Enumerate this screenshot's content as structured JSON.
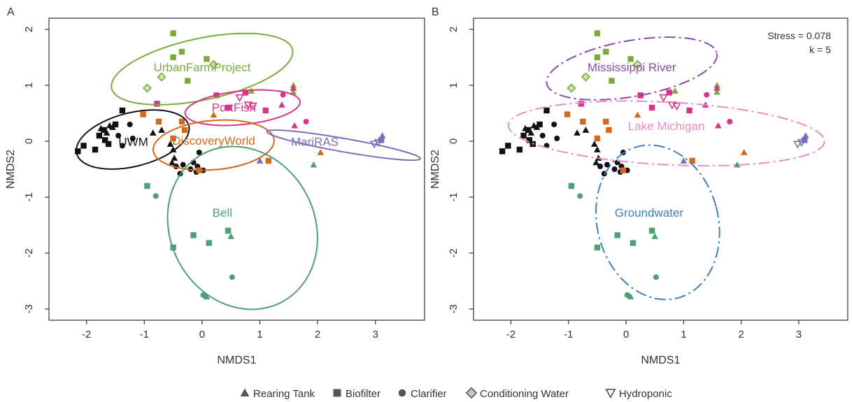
{
  "chart_data": [
    {
      "panel_label": "A",
      "type": "scatter",
      "xlabel": "NMDS1",
      "ylabel": "NMDS2",
      "xlim": [
        -2.65,
        3.85
      ],
      "ylim": [
        -3.2,
        2.2
      ],
      "xticks": [
        -2,
        -1,
        0,
        1,
        2,
        3
      ],
      "yticks": [
        -3,
        -2,
        -1,
        0,
        1,
        2
      ],
      "xtick_labels": [
        "-2",
        "-1",
        "0",
        "1",
        "2",
        "3"
      ],
      "ytick_labels": [
        "-3",
        "-2",
        "-1",
        "0",
        "1",
        "2"
      ],
      "groups": [
        {
          "name": "UrbanFarmProject",
          "color": "#7aab3a",
          "label_at": [
            0.0,
            1.25
          ],
          "ellipse": {
            "cx": 0.0,
            "cy": 1.29,
            "rx": 1.6,
            "ry": 0.55,
            "angle": -12,
            "dash": false
          }
        },
        {
          "name": "PortFish",
          "color": "#d6338a",
          "label_at": [
            0.55,
            0.53
          ],
          "ellipse": {
            "cx": 0.7,
            "cy": 0.6,
            "rx": 1.0,
            "ry": 0.3,
            "angle": -6,
            "dash": false
          }
        },
        {
          "name": "UWM",
          "color": "#111111",
          "label_at": [
            -1.19,
            -0.08
          ],
          "ellipse": {
            "cx": -1.2,
            "cy": 0.03,
            "rx": 1.0,
            "ry": 0.48,
            "angle": -14,
            "dash": false
          }
        },
        {
          "name": "DiscoveryWorld",
          "color": "#d2691e",
          "label_at": [
            0.2,
            -0.06
          ],
          "ellipse": {
            "cx": 0.2,
            "cy": -0.07,
            "rx": 1.05,
            "ry": 0.44,
            "angle": -5,
            "dash": false
          }
        },
        {
          "name": "MariRAS",
          "color": "#7b6cbf",
          "label_at": [
            1.95,
            -0.08
          ],
          "ellipse": {
            "cx": 2.45,
            "cy": -0.07,
            "rx": 1.35,
            "ry": 0.12,
            "angle": 10,
            "dash": false
          }
        },
        {
          "name": "Bell",
          "color": "#4e9f74",
          "label_at": [
            0.35,
            -1.35
          ],
          "ellipse": {
            "cx": 0.7,
            "cy": -1.55,
            "rx": 1.25,
            "ry": 1.5,
            "angle": -28,
            "dash": false
          }
        }
      ]
    },
    {
      "panel_label": "B",
      "type": "scatter",
      "xlabel": "NMDS1",
      "ylabel": "NMDS2",
      "xlim": [
        -2.65,
        3.85
      ],
      "ylim": [
        -3.2,
        2.2
      ],
      "xticks": [
        -2,
        -1,
        0,
        1,
        2,
        3
      ],
      "yticks": [
        -3,
        -2,
        -1,
        0,
        1,
        2
      ],
      "xtick_labels": [
        "-2",
        "-1",
        "0",
        "1",
        "2",
        "3"
      ],
      "ytick_labels": [
        "-3",
        "-2",
        "-1",
        "0",
        "1",
        "2"
      ],
      "annotation_lines": [
        "Stress = 0.078",
        "k = 5"
      ],
      "groups": [
        {
          "name": "Mississippi River",
          "color": "#8a49a8",
          "label_at": [
            0.1,
            1.25
          ],
          "ellipse": {
            "cx": 0.1,
            "cy": 1.3,
            "rx": 1.5,
            "ry": 0.5,
            "angle": -10,
            "dash": true
          }
        },
        {
          "name": "Lake Michigan",
          "color": "#e98dc3",
          "label_at": [
            0.7,
            0.2
          ],
          "ellipse": {
            "cx": 0.7,
            "cy": 0.14,
            "rx": 2.75,
            "ry": 0.56,
            "angle": 3,
            "dash": true
          }
        },
        {
          "name": "Groundwater",
          "color": "#3d7fc1",
          "label_at": [
            0.4,
            -1.35
          ],
          "ellipse": {
            "cx": 0.55,
            "cy": -1.45,
            "rx": 1.05,
            "ry": 1.4,
            "angle": -15,
            "dash": true
          }
        }
      ]
    }
  ],
  "points": [
    {
      "x": -2.15,
      "y": -0.18,
      "shape": "square",
      "group": "UWM"
    },
    {
      "x": -2.05,
      "y": -0.08,
      "shape": "square",
      "group": "UWM"
    },
    {
      "x": -1.85,
      "y": -0.15,
      "shape": "square",
      "group": "UWM"
    },
    {
      "x": -1.78,
      "y": 0.1,
      "shape": "square",
      "group": "UWM"
    },
    {
      "x": -1.7,
      "y": 0.2,
      "shape": "square",
      "group": "UWM"
    },
    {
      "x": -1.65,
      "y": 0.15,
      "shape": "triangle",
      "group": "UWM"
    },
    {
      "x": -1.6,
      "y": 0.28,
      "shape": "triangle",
      "group": "UWM"
    },
    {
      "x": -1.55,
      "y": 0.25,
      "shape": "triangle",
      "group": "UWM"
    },
    {
      "x": -1.75,
      "y": 0.23,
      "shape": "triangle",
      "group": "UWM"
    },
    {
      "x": -1.68,
      "y": 0.02,
      "shape": "square",
      "group": "UWM"
    },
    {
      "x": -1.62,
      "y": -0.05,
      "shape": "square",
      "group": "UWM"
    },
    {
      "x": -1.5,
      "y": 0.3,
      "shape": "square",
      "group": "UWM"
    },
    {
      "x": -1.38,
      "y": 0.55,
      "shape": "square",
      "group": "UWM"
    },
    {
      "x": -1.25,
      "y": 0.3,
      "shape": "circle",
      "group": "UWM"
    },
    {
      "x": -1.45,
      "y": 0.1,
      "shape": "circle",
      "group": "UWM"
    },
    {
      "x": -1.2,
      "y": 0.05,
      "shape": "circle",
      "group": "UWM"
    },
    {
      "x": -1.38,
      "y": -0.08,
      "shape": "circle",
      "group": "UWM"
    },
    {
      "x": -0.85,
      "y": 0.15,
      "shape": "triangle",
      "group": "DiscoveryWorld"
    },
    {
      "x": -0.7,
      "y": 0.2,
      "shape": "triangle",
      "group": "DiscoveryWorld"
    },
    {
      "x": -0.55,
      "y": -0.05,
      "shape": "triangle",
      "group": "DiscoveryWorld"
    },
    {
      "x": -0.5,
      "y": -0.15,
      "shape": "triangle",
      "group": "DiscoveryWorld"
    },
    {
      "x": -0.48,
      "y": -0.3,
      "shape": "triangle",
      "group": "DiscoveryWorld"
    },
    {
      "x": -0.52,
      "y": -0.38,
      "shape": "triangle",
      "group": "DiscoveryWorld"
    },
    {
      "x": -0.45,
      "y": -0.45,
      "shape": "circle",
      "group": "DiscoveryWorld"
    },
    {
      "x": -0.33,
      "y": -0.42,
      "shape": "circle",
      "group": "DiscoveryWorld"
    },
    {
      "x": -0.2,
      "y": -0.5,
      "shape": "circle",
      "group": "DiscoveryWorld"
    },
    {
      "x": -0.08,
      "y": -0.45,
      "shape": "circle",
      "group": "DiscoveryWorld"
    },
    {
      "x": 0.02,
      "y": -0.52,
      "shape": "circle",
      "group": "DiscoveryWorld"
    },
    {
      "x": -0.38,
      "y": -0.58,
      "shape": "circle",
      "group": "DiscoveryWorld"
    },
    {
      "x": -0.05,
      "y": -0.2,
      "shape": "circle",
      "group": "DiscoveryWorld"
    },
    {
      "x": -0.15,
      "y": -0.38,
      "shape": "circle",
      "group": "DiscoveryWorld"
    },
    {
      "x": -0.1,
      "y": -0.55,
      "shape": "circle",
      "group": "DiscoveryWorld"
    },
    {
      "x": -1.02,
      "y": 0.48,
      "shape": "square",
      "group": "DiscoveryWorld",
      "color": "#d2691e"
    },
    {
      "x": -0.75,
      "y": 0.35,
      "shape": "square",
      "group": "DiscoveryWorld",
      "color": "#d2691e"
    },
    {
      "x": -0.35,
      "y": 0.35,
      "shape": "square",
      "group": "DiscoveryWorld",
      "color": "#d2691e"
    },
    {
      "x": -0.3,
      "y": 0.2,
      "shape": "square",
      "group": "DiscoveryWorld",
      "color": "#d2691e"
    },
    {
      "x": -0.5,
      "y": 0.05,
      "shape": "square",
      "group": "DiscoveryWorld",
      "color": "#d2691e"
    },
    {
      "x": -0.05,
      "y": -0.52,
      "shape": "square",
      "group": "DiscoveryWorld",
      "color": "#d2691e"
    },
    {
      "x": 0.2,
      "y": 0.47,
      "shape": "triangle",
      "group": "DiscoveryWorld",
      "color": "#d2691e"
    },
    {
      "x": 1.15,
      "y": -0.35,
      "shape": "square",
      "group": "DiscoveryWorld",
      "color": "#d2691e"
    },
    {
      "x": 2.05,
      "y": -0.2,
      "shape": "triangle",
      "group": "DiscoveryWorld",
      "color": "#d2691e"
    },
    {
      "x": -0.5,
      "y": 1.93,
      "shape": "square",
      "group": "UrbanFarmProject",
      "color": "#7aab3a"
    },
    {
      "x": -0.35,
      "y": 1.6,
      "shape": "square",
      "group": "UrbanFarmProject",
      "color": "#7aab3a"
    },
    {
      "x": -0.5,
      "y": 1.5,
      "shape": "square",
      "group": "UrbanFarmProject",
      "color": "#7aab3a"
    },
    {
      "x": 0.08,
      "y": 1.47,
      "shape": "square",
      "group": "UrbanFarmProject",
      "color": "#7aab3a"
    },
    {
      "x": -0.25,
      "y": 1.08,
      "shape": "square",
      "group": "UrbanFarmProject",
      "color": "#7aab3a"
    },
    {
      "x": 0.2,
      "y": 1.37,
      "shape": "diamond",
      "group": "UrbanFarmProject",
      "color": "#7aab3a"
    },
    {
      "x": -0.7,
      "y": 1.15,
      "shape": "diamond",
      "group": "UrbanFarmProject",
      "color": "#7aab3a"
    },
    {
      "x": -0.95,
      "y": 0.95,
      "shape": "diamond",
      "group": "UrbanFarmProject",
      "color": "#7aab3a"
    },
    {
      "x": 0.85,
      "y": 0.9,
      "shape": "triangle",
      "group": "UrbanFarmProject",
      "color": "#7aab3a"
    },
    {
      "x": 1.58,
      "y": 1.0,
      "shape": "triangle",
      "group": "UrbanFarmProject",
      "color": "#7aab3a"
    },
    {
      "x": 1.58,
      "y": 0.88,
      "shape": "triangle",
      "group": "UrbanFarmProject",
      "color": "#7aab3a"
    },
    {
      "x": -0.78,
      "y": 0.67,
      "shape": "square",
      "group": "PortFish",
      "color": "#d6338a"
    },
    {
      "x": 0.25,
      "y": 0.82,
      "shape": "square",
      "group": "PortFish",
      "color": "#d6338a"
    },
    {
      "x": 0.75,
      "y": 0.87,
      "shape": "square",
      "group": "PortFish",
      "color": "#d6338a"
    },
    {
      "x": 0.45,
      "y": 0.6,
      "shape": "square",
      "group": "PortFish",
      "color": "#d6338a"
    },
    {
      "x": 1.1,
      "y": 0.55,
      "shape": "square",
      "group": "PortFish",
      "color": "#d6338a"
    },
    {
      "x": 0.65,
      "y": 0.78,
      "shape": "invtri",
      "group": "PortFish",
      "color": "#d6338a"
    },
    {
      "x": 0.8,
      "y": 0.65,
      "shape": "invtri",
      "group": "PortFish",
      "color": "#d6338a"
    },
    {
      "x": 0.88,
      "y": 0.63,
      "shape": "invtri",
      "group": "PortFish",
      "color": "#d6338a"
    },
    {
      "x": 1.4,
      "y": 0.83,
      "shape": "circle",
      "group": "PortFish",
      "color": "#d6338a"
    },
    {
      "x": 1.8,
      "y": 0.35,
      "shape": "circle",
      "group": "PortFish",
      "color": "#d6338a"
    },
    {
      "x": 1.38,
      "y": 0.65,
      "shape": "triangle",
      "group": "PortFish",
      "color": "#d6338a"
    },
    {
      "x": 1.6,
      "y": 0.28,
      "shape": "triangle",
      "group": "PortFish",
      "color": "#d6338a"
    },
    {
      "x": 1.58,
      "y": 0.95,
      "shape": "triangle",
      "group": "PortFish",
      "color": "#d6338a"
    },
    {
      "x": 1.0,
      "y": -0.35,
      "shape": "triangle",
      "group": "MariRAS",
      "color": "#7b6cbf"
    },
    {
      "x": 3.1,
      "y": 0.02,
      "shape": "square",
      "group": "MariRAS",
      "color": "#7b6cbf"
    },
    {
      "x": 3.12,
      "y": 0.1,
      "shape": "triangle",
      "group": "MariRAS",
      "color": "#7b6cbf"
    },
    {
      "x": 3.05,
      "y": -0.02,
      "shape": "invtri",
      "group": "MariRAS",
      "color": "#7b6cbf"
    },
    {
      "x": 2.98,
      "y": -0.05,
      "shape": "invtri",
      "group": "MariRAS",
      "color": "#7b6cbf"
    },
    {
      "x": -0.95,
      "y": -0.8,
      "shape": "square",
      "group": "Bell",
      "color": "#4e9f74"
    },
    {
      "x": -0.8,
      "y": -0.98,
      "shape": "circle",
      "group": "Bell",
      "color": "#4e9f74"
    },
    {
      "x": -0.5,
      "y": -1.9,
      "shape": "square",
      "group": "Bell",
      "color": "#4e9f74"
    },
    {
      "x": -0.15,
      "y": -1.68,
      "shape": "square",
      "group": "Bell",
      "color": "#4e9f74"
    },
    {
      "x": 0.12,
      "y": -1.82,
      "shape": "square",
      "group": "Bell",
      "color": "#4e9f74"
    },
    {
      "x": 0.45,
      "y": -1.6,
      "shape": "square",
      "group": "Bell",
      "color": "#4e9f74"
    },
    {
      "x": 0.5,
      "y": -1.7,
      "shape": "triangle",
      "group": "Bell",
      "color": "#4e9f74"
    },
    {
      "x": 0.52,
      "y": -2.43,
      "shape": "circle",
      "group": "Bell",
      "color": "#4e9f74"
    },
    {
      "x": 0.02,
      "y": -2.75,
      "shape": "circle",
      "group": "Bell",
      "color": "#4e9f74"
    },
    {
      "x": 0.08,
      "y": -2.78,
      "shape": "triangle",
      "group": "Bell",
      "color": "#4e9f74"
    },
    {
      "x": 1.93,
      "y": -0.42,
      "shape": "triangle",
      "group": "Bell",
      "color": "#4e9f74"
    }
  ],
  "legend": [
    {
      "shape": "triangle",
      "label": "Rearing Tank"
    },
    {
      "shape": "square",
      "label": "Biofilter"
    },
    {
      "shape": "circle",
      "label": "Clarifier"
    },
    {
      "shape": "diamond",
      "label": "Conditioning Water"
    },
    {
      "shape": "invtri",
      "label": "Hydroponic"
    }
  ],
  "colors": {
    "default_point": "#111111",
    "axis": "#333333",
    "legend_marker": "#555555"
  }
}
